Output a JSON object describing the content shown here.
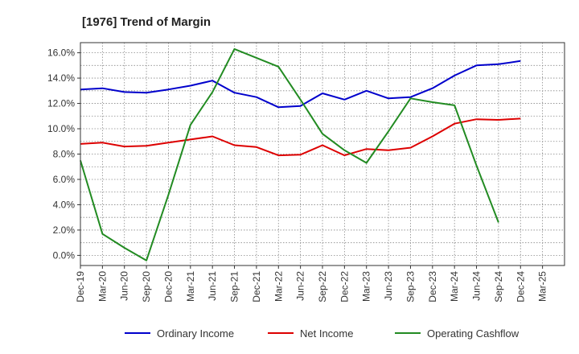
{
  "chart_data": {
    "type": "line",
    "title": "[1976]  Trend of Margin",
    "xlabel": "",
    "ylabel": "",
    "x_ticks": [
      "Dec-19",
      "Mar-20",
      "Jun-20",
      "Sep-20",
      "Dec-20",
      "Mar-21",
      "Jun-21",
      "Sep-21",
      "Dec-21",
      "Mar-22",
      "Jun-22",
      "Sep-22",
      "Dec-22",
      "Mar-23",
      "Jun-23",
      "Sep-23",
      "Dec-23",
      "Mar-24",
      "Jun-24",
      "Sep-24",
      "Dec-24",
      "Mar-25"
    ],
    "y_ticks": [
      "0.0%",
      "2.0%",
      "4.0%",
      "6.0%",
      "8.0%",
      "10.0%",
      "12.0%",
      "14.0%",
      "16.0%"
    ],
    "ylim": [
      -0.8,
      16.8
    ],
    "grid": true,
    "legend_position": "bottom",
    "series": [
      {
        "name": "Ordinary Income",
        "color": "#0000cc",
        "x": [
          "Dec-19",
          "Mar-20",
          "Jun-20",
          "Sep-20",
          "Dec-20",
          "Mar-21",
          "Jun-21",
          "Sep-21",
          "Dec-21",
          "Mar-22",
          "Jun-22",
          "Sep-22",
          "Dec-22",
          "Mar-23",
          "Jun-23",
          "Sep-23",
          "Dec-23",
          "Mar-24",
          "Jun-24",
          "Sep-24",
          "Dec-24"
        ],
        "values": [
          13.1,
          13.2,
          12.9,
          12.85,
          13.1,
          13.4,
          13.8,
          12.85,
          12.5,
          11.7,
          11.8,
          12.8,
          12.3,
          13.0,
          12.4,
          12.5,
          13.2,
          14.2,
          15.0,
          15.1,
          15.35
        ]
      },
      {
        "name": "Net Income",
        "color": "#dd0000",
        "x": [
          "Dec-19",
          "Mar-20",
          "Jun-20",
          "Sep-20",
          "Dec-20",
          "Mar-21",
          "Jun-21",
          "Sep-21",
          "Dec-21",
          "Mar-22",
          "Jun-22",
          "Sep-22",
          "Dec-22",
          "Mar-23",
          "Jun-23",
          "Sep-23",
          "Dec-23",
          "Mar-24",
          "Jun-24",
          "Sep-24",
          "Dec-24"
        ],
        "values": [
          8.8,
          8.9,
          8.6,
          8.65,
          8.9,
          9.15,
          9.4,
          8.7,
          8.55,
          7.9,
          7.95,
          8.7,
          7.9,
          8.4,
          8.3,
          8.5,
          9.4,
          10.4,
          10.75,
          10.7,
          10.8
        ]
      },
      {
        "name": "Operating Cashflow",
        "color": "#228b22",
        "x": [
          "Dec-19",
          "Mar-20",
          "Jun-20",
          "Sep-20",
          "Dec-20",
          "Mar-21",
          "Jun-21",
          "Sep-21",
          "Dec-21",
          "Mar-22",
          "Jun-22",
          "Sep-22",
          "Dec-22",
          "Mar-23",
          "Jun-23",
          "Sep-23",
          "Dec-23",
          "Mar-24",
          "Jun-24",
          "Sep-24"
        ],
        "values": [
          7.5,
          1.7,
          0.6,
          -0.4,
          4.8,
          10.3,
          12.9,
          16.3,
          15.6,
          14.9,
          12.3,
          9.6,
          8.3,
          7.3,
          9.8,
          12.4,
          12.1,
          11.85,
          7.1,
          2.6
        ]
      }
    ]
  }
}
